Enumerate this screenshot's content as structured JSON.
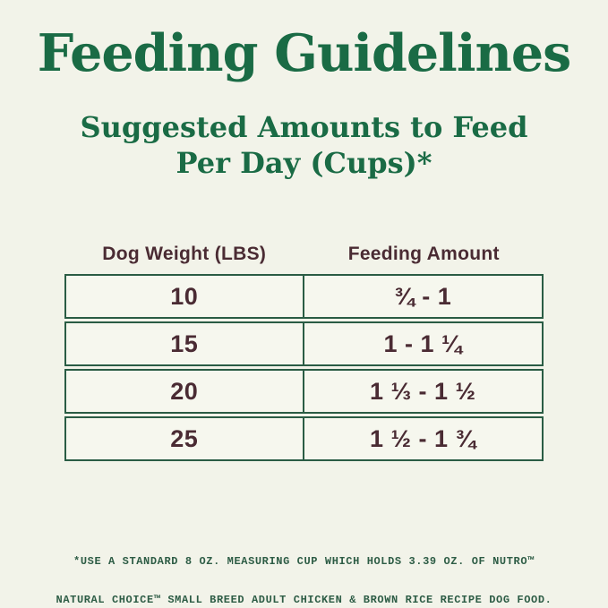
{
  "page": {
    "title": "Feeding Guidelines",
    "subtitle_line1": "Suggested Amounts to Feed",
    "subtitle_line2": "Per Day (Cups)*"
  },
  "table": {
    "headers": [
      "Dog Weight (LBS)",
      "Feeding Amount"
    ],
    "rows": [
      {
        "weight": "10",
        "amount": "¾ - 1"
      },
      {
        "weight": "15",
        "amount": "1 - 1 ¼"
      },
      {
        "weight": "20",
        "amount": "1 ⅓ - 1 ½"
      },
      {
        "weight": "25",
        "amount": "1 ½ - 1 ¾"
      }
    ]
  },
  "footnote": {
    "line1": "*USE A STANDARD 8 OZ. MEASURING CUP WHICH HOLDS 3.39 OZ. OF NUTRO™",
    "line2": "NATURAL CHOICE™ SMALL BREED ADULT CHICKEN & BROWN RICE RECIPE DOG FOOD."
  },
  "colors": {
    "background": "#f2f3e9",
    "title_green": "#1a6b45",
    "table_border_green": "#2a5c44",
    "cell_background": "#f6f7ee",
    "text_maroon": "#4a2b33",
    "footnote_green": "#2d5c45"
  },
  "chart_data": {
    "type": "table",
    "title": "Feeding Guidelines — Suggested Amounts to Feed Per Day (Cups)*",
    "columns": [
      "Dog Weight (LBS)",
      "Feeding Amount"
    ],
    "rows": [
      [
        "10",
        "¾ - 1"
      ],
      [
        "15",
        "1 - 1 ¼"
      ],
      [
        "20",
        "1 ⅓ - 1 ½"
      ],
      [
        "25",
        "1 ½ - 1 ¾"
      ]
    ]
  }
}
